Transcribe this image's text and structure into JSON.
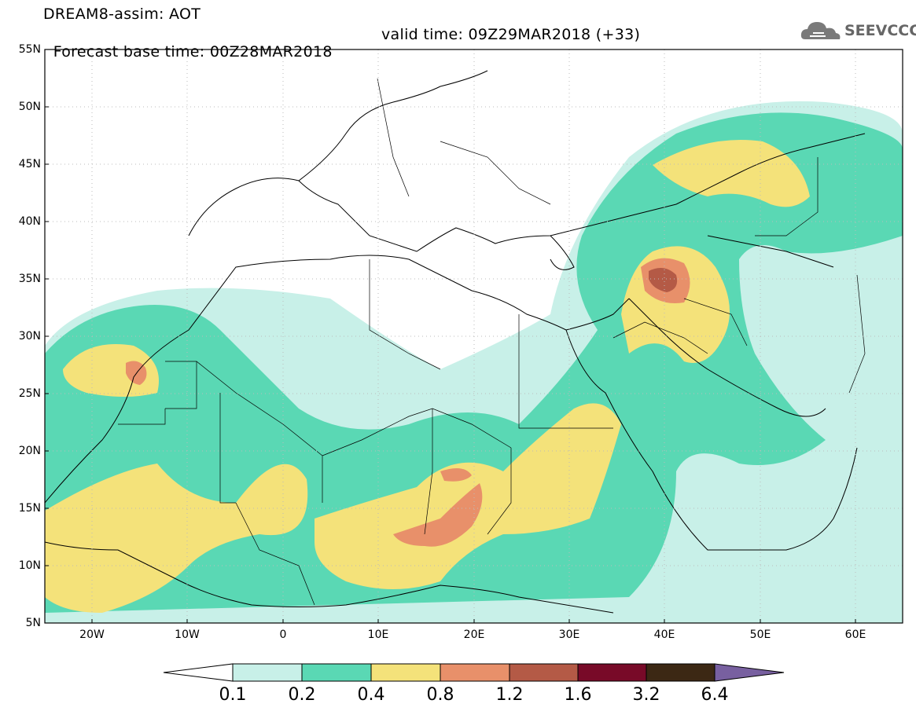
{
  "header": {
    "line1": "DREAM8-assim: AOT",
    "base_time": "Forecast base time: 00Z28MAR2018",
    "valid_time": "valid time: 09Z29MAR2018 (+33)"
  },
  "logo": {
    "text": "SEEVCCC",
    "icon": "cloud-icon"
  },
  "map": {
    "lat_ticks": [
      "55N",
      "50N",
      "45N",
      "40N",
      "35N",
      "30N",
      "25N",
      "20N",
      "15N",
      "10N",
      "5N"
    ],
    "lon_ticks": [
      "20W",
      "10W",
      "0",
      "10E",
      "20E",
      "30E",
      "40E",
      "50E",
      "60E"
    ],
    "extent": {
      "lon": [
        -25,
        65
      ],
      "lat": [
        5,
        55
      ]
    }
  },
  "colorbar": {
    "labels": [
      "0.1",
      "0.2",
      "0.4",
      "0.8",
      "1.2",
      "1.6",
      "3.2",
      "6.4"
    ],
    "colors": [
      "#c8f0e8",
      "#5ad8b4",
      "#f4e27a",
      "#e8906a",
      "#b45a46",
      "#780a28",
      "#3c2814",
      "#7860a0"
    ],
    "thresholds": [
      0.1,
      0.2,
      0.4,
      0.8,
      1.2,
      1.6,
      3.2,
      6.4
    ]
  }
}
